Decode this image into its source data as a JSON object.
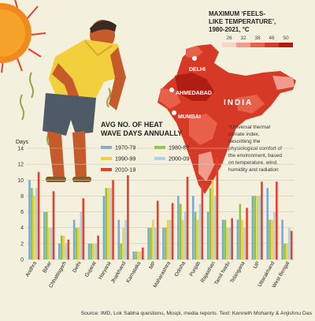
{
  "map_legend": {
    "title_lines": [
      "MAXIMUM ‘FEELS-",
      "LIKE TEMPERATURE’,",
      "1980-2021, °C"
    ],
    "ticks": [
      "26",
      "32",
      "38",
      "46",
      "50"
    ],
    "colors": [
      "#f6d3cc",
      "#ef9c8c",
      "#e6604a",
      "#d63a26",
      "#b01d12"
    ]
  },
  "map": {
    "country_label": "INDIA",
    "cities": [
      "DELHI",
      "AHMEDABAD",
      "MUMBAI"
    ],
    "note_lines": [
      "*Universal thermal",
      "climate index,",
      "describing the",
      "physiological comfort of",
      "the environment, based",
      "on temperature, wind,",
      "humidity and radiation"
    ]
  },
  "chart_title_lines": [
    "AVG NO. OF HEAT",
    "WAVE DAYS ANNUALLY"
  ],
  "footer": {
    "source": "Source: IMD, Lok Sabha questions, Mospi, media reports. Text: Kenneth Mohanty & Anjishnu Das"
  },
  "chart_data": {
    "type": "bar",
    "ylabel": "Days",
    "ylim": [
      0,
      14
    ],
    "yticks": [
      0,
      2,
      4,
      6,
      8,
      10,
      12,
      14
    ],
    "grid": true,
    "legend_position": "top-center",
    "categories": [
      "Andhra",
      "Bihar",
      "Chhattisgarh",
      "Delhi",
      "Gujarat",
      "Haryana",
      "Jharkhand",
      "Karnataka",
      "MP",
      "Maharashtra",
      "Odisha",
      "Punjab",
      "Rajasthan",
      "Tamil Nadu",
      "Telangana",
      "UP",
      "Uttarakhand",
      "West Bengal"
    ],
    "series": [
      {
        "name": "1970-79",
        "color": "#7aa9d6",
        "values": [
          10,
          6,
          2,
          5,
          2,
          8,
          5,
          1,
          4,
          4,
          8,
          8,
          6,
          5,
          5,
          8,
          9,
          5
        ]
      },
      {
        "name": "1980-89",
        "color": "#8cc63e",
        "values": [
          9,
          6,
          3,
          4,
          2,
          9,
          2,
          1,
          4,
          4,
          7,
          6,
          9,
          5,
          7,
          8,
          5,
          2
        ]
      },
      {
        "name": "1990-99",
        "color": "#f3cf3e",
        "values": [
          8,
          4,
          3,
          4,
          2,
          9,
          4,
          1,
          5,
          5,
          5,
          5,
          10,
          4,
          5,
          8,
          5,
          2
        ]
      },
      {
        "name": "2000-09",
        "color": "#a7d3e8",
        "values": [
          9,
          4,
          2,
          6,
          2,
          9,
          5,
          1,
          4,
          5,
          6,
          7,
          8,
          4,
          4,
          8,
          6,
          4
        ]
      },
      {
        "name": "2010-19",
        "color": "#e6402d",
        "values": [
          11,
          8.6,
          2.5,
          7.7,
          3,
          10,
          10.6,
          1.5,
          7.4,
          7.1,
          10.4,
          9.6,
          12.8,
          5.2,
          6.5,
          9.8,
          9.8,
          3.6
        ]
      }
    ]
  }
}
